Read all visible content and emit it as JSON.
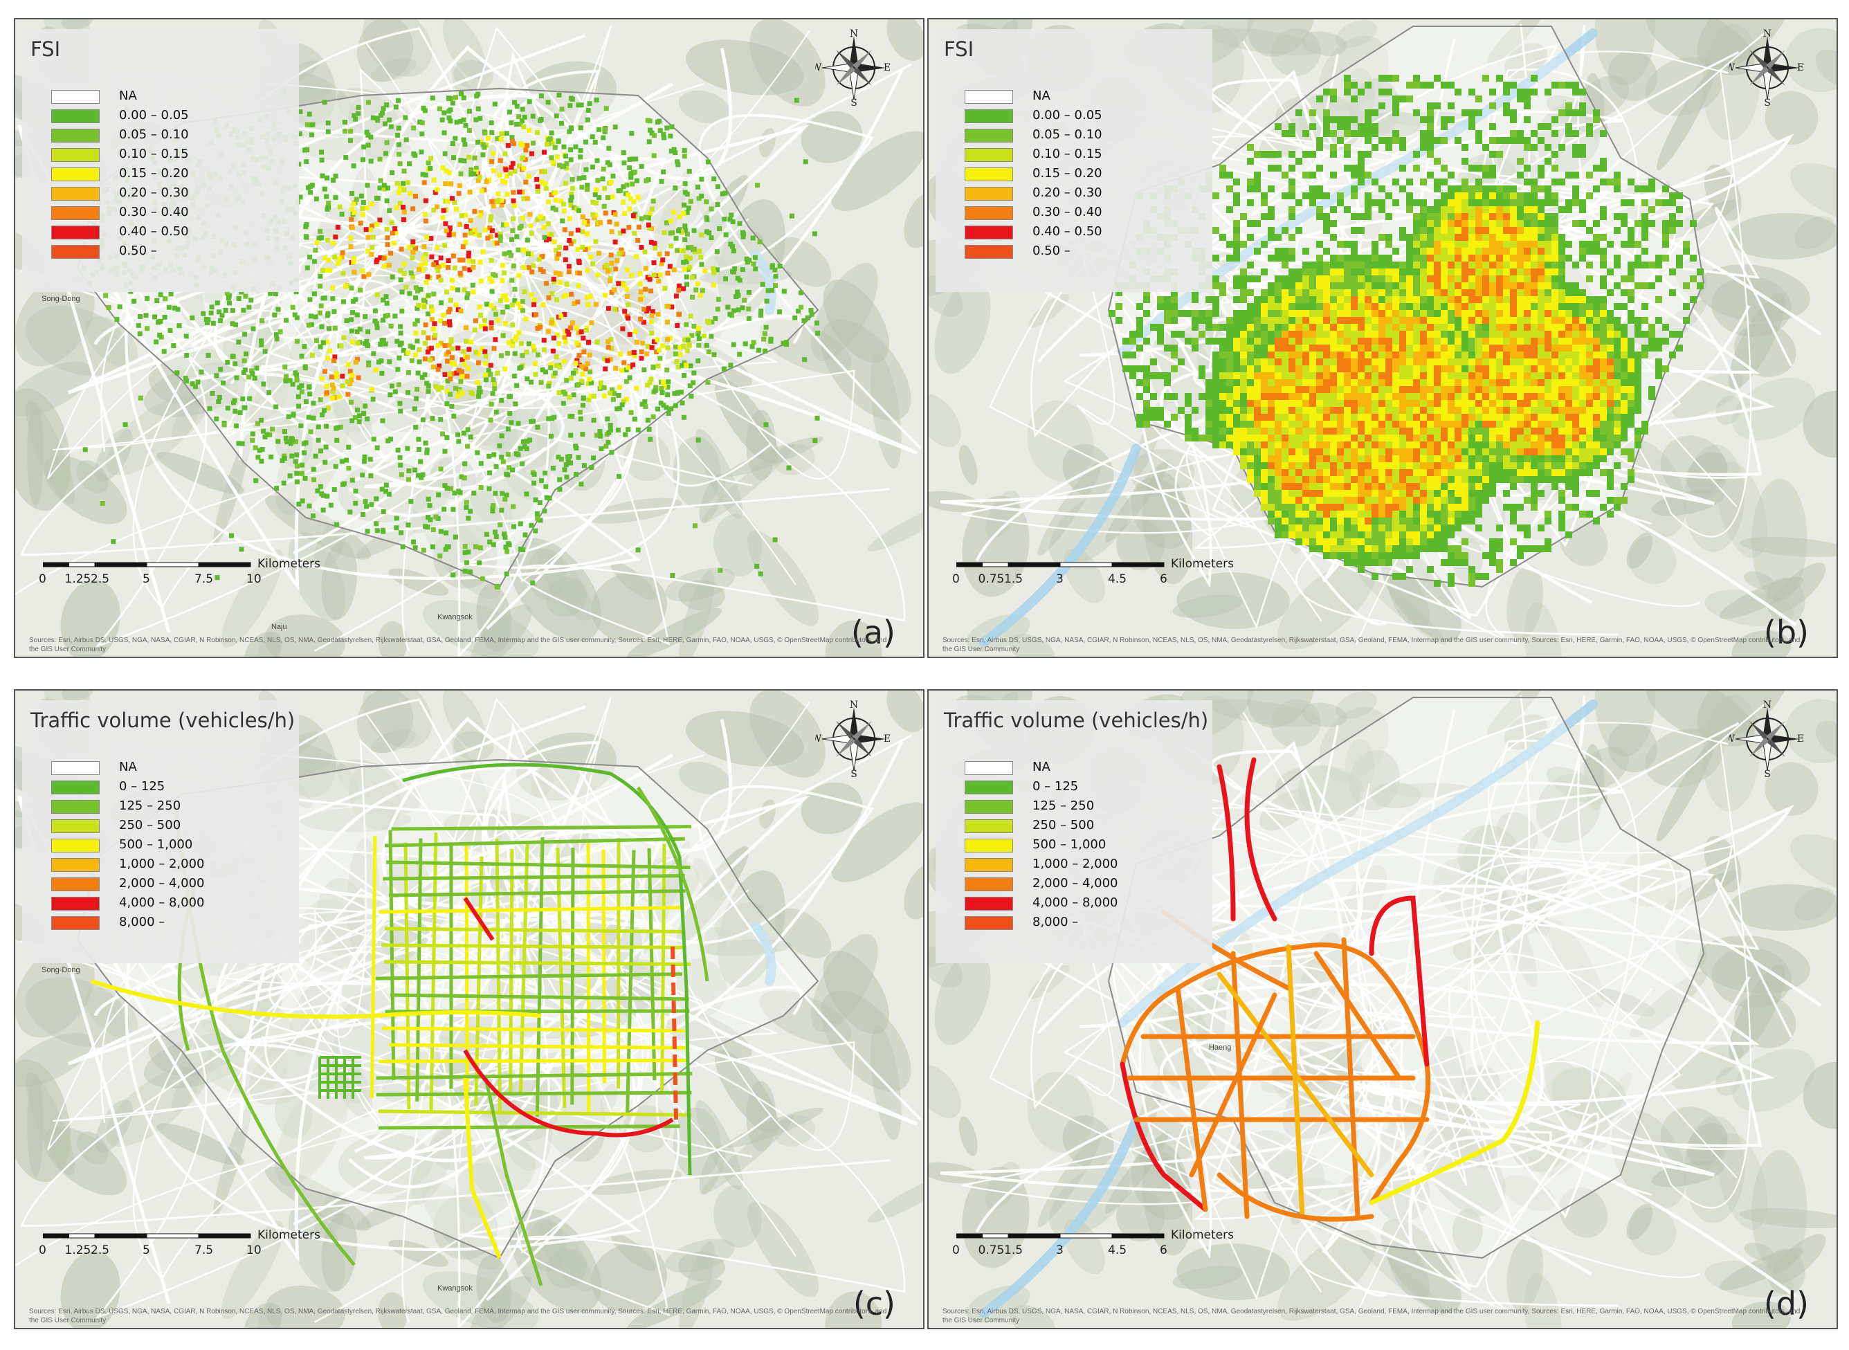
{
  "panels": [
    {
      "id": "a",
      "panel_label": "(a)",
      "legend": {
        "title": "FSI",
        "items": [
          {
            "label": "NA",
            "color": "#ffffff"
          },
          {
            "label": "0.00 – 0.05",
            "color": "#5cb82d"
          },
          {
            "label": "0.05 – 0.10",
            "color": "#7ac12f"
          },
          {
            "label": "0.10 – 0.15",
            "color": "#c8e21c"
          },
          {
            "label": "0.15 – 0.20",
            "color": "#f6f20c"
          },
          {
            "label": "0.20 – 0.30",
            "color": "#f6b60c"
          },
          {
            "label": "0.30 – 0.40",
            "color": "#f27d10"
          },
          {
            "label": "0.40 – 0.50",
            "color": "#e8141c"
          },
          {
            "label": "0.50 –",
            "color": "#f0501c"
          }
        ]
      },
      "scale": {
        "unit": "Kilometers",
        "ticks": [
          "0",
          "1.25",
          "2.5",
          "5",
          "7.5",
          "10"
        ]
      },
      "place_names": [
        "Song-Dong",
        "Kwangsok",
        "Naju"
      ],
      "attribution": "Sources: Esri, Airbus DS, USGS, NGA, NASA, CGIAR, N Robinson, NCEAS, NLS, OS, NMA, Geodatastyrelsen, Rijkswaterstaat, GSA, Geoland, FEMA, Intermap and the GIS user community, Sources: Esri, HERE, Garmin, FAO, NOAA, USGS, © OpenStreetMap contributors, and the GIS User Community"
    },
    {
      "id": "b",
      "panel_label": "(b)",
      "legend": {
        "title": "FSI",
        "items": [
          {
            "label": "NA",
            "color": "#ffffff"
          },
          {
            "label": "0.00 – 0.05",
            "color": "#5cb82d"
          },
          {
            "label": "0.05 – 0.10",
            "color": "#7ac12f"
          },
          {
            "label": "0.10 – 0.15",
            "color": "#c8e21c"
          },
          {
            "label": "0.15 – 0.20",
            "color": "#f6f20c"
          },
          {
            "label": "0.20 – 0.30",
            "color": "#f6b60c"
          },
          {
            "label": "0.30 – 0.40",
            "color": "#f27d10"
          },
          {
            "label": "0.40 – 0.50",
            "color": "#e8141c"
          },
          {
            "label": "0.50 –",
            "color": "#f0501c"
          }
        ]
      },
      "scale": {
        "unit": "Kilometers",
        "ticks": [
          "0",
          "0.75",
          "1.5",
          "3",
          "4.5",
          "6"
        ]
      },
      "place_names": [],
      "attribution": "Sources: Esri, Airbus DS, USGS, NGA, NASA, CGIAR, N Robinson, NCEAS, NLS, OS, NMA, Geodatastyrelsen, Rijkswaterstaat, GSA, Geoland, FEMA, Intermap and the GIS user community, Sources: Esri, HERE, Garmin, FAO, NOAA, USGS, © OpenStreetMap contributors, and the GIS User Community"
    },
    {
      "id": "c",
      "panel_label": "(c)",
      "legend": {
        "title": "Traffic volume (vehicles/h)",
        "items": [
          {
            "label": "NA",
            "color": "#ffffff"
          },
          {
            "label": "0 – 125",
            "color": "#5cb82d"
          },
          {
            "label": "125 – 250",
            "color": "#7ac12f"
          },
          {
            "label": "250 – 500",
            "color": "#c8e21c"
          },
          {
            "label": "500 – 1,000",
            "color": "#f6f20c"
          },
          {
            "label": "1,000 – 2,000",
            "color": "#f6b60c"
          },
          {
            "label": "2,000 – 4,000",
            "color": "#f27d10"
          },
          {
            "label": "4,000 – 8,000",
            "color": "#e8141c"
          },
          {
            "label": "8,000 –",
            "color": "#f0501c"
          }
        ]
      },
      "scale": {
        "unit": "Kilometers",
        "ticks": [
          "0",
          "1.25",
          "2.5",
          "5",
          "7.5",
          "10"
        ]
      },
      "place_names": [
        "Song-Dong",
        "Kwangsok"
      ],
      "attribution": "Sources: Esri, Airbus DS, USGS, NGA, NASA, CGIAR, N Robinson, NCEAS, NLS, OS, NMA, Geodatastyrelsen, Rijkswaterstaat, GSA, Geoland, FEMA, Intermap and the GIS user community, Sources: Esri, HERE, Garmin, FAO, NOAA, USGS, © OpenStreetMap contributors, and the GIS User Community"
    },
    {
      "id": "d",
      "panel_label": "(d)",
      "legend": {
        "title": "Traffic volume (vehicles/h)",
        "items": [
          {
            "label": "NA",
            "color": "#ffffff"
          },
          {
            "label": "0 – 125",
            "color": "#5cb82d"
          },
          {
            "label": "125 – 250",
            "color": "#7ac12f"
          },
          {
            "label": "250 – 500",
            "color": "#c8e21c"
          },
          {
            "label": "500 – 1,000",
            "color": "#f6f20c"
          },
          {
            "label": "1,000 – 2,000",
            "color": "#f6b60c"
          },
          {
            "label": "2,000 – 4,000",
            "color": "#f27d10"
          },
          {
            "label": "4,000 – 8,000",
            "color": "#e8141c"
          },
          {
            "label": "8,000 –",
            "color": "#f0501c"
          }
        ]
      },
      "scale": {
        "unit": "Kilometers",
        "ticks": [
          "0",
          "0.75",
          "1.5",
          "3",
          "4.5",
          "6"
        ]
      },
      "place_names": [
        "Haeng"
      ],
      "attribution": "Sources: Esri, Airbus DS, USGS, NGA, NASA, CGIAR, N Robinson, NCEAS, NLS, OS, NMA, Geodatastyrelsen, Rijkswaterstaat, GSA, Geoland, FEMA, Intermap and the GIS user community, Sources: Esri, HERE, Garmin, FAO, NOAA, USGS, © OpenStreetMap contributors, and the GIS User Community"
    }
  ],
  "compass": {
    "n": "N",
    "s": "S",
    "e": "E",
    "w": "W"
  },
  "colors": {
    "basemap": "#e9ebe4",
    "terrain": "#b9c2ad",
    "water": "#a8d4ec",
    "road": "#ffffff",
    "boundary": "#8a8a8a"
  }
}
